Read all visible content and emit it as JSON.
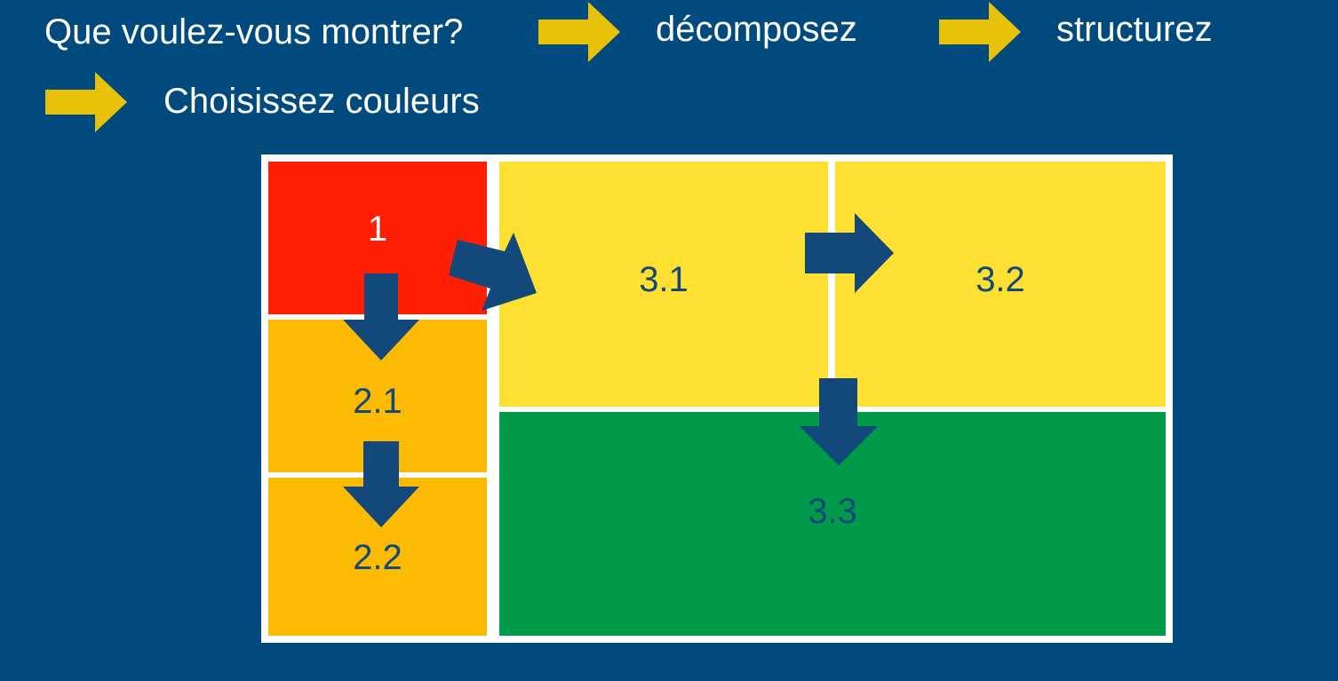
{
  "steps": [
    "Que voulez-vous montrer?",
    "décomposez",
    "structurez",
    "Choisissez couleurs"
  ],
  "colors": {
    "background": "#014a7d",
    "step_arrow": "#e7c208",
    "flow_arrow": "#13487a",
    "red": "#fe1e04",
    "orange": "#fdba03",
    "yellow": "#fee033",
    "green": "#019a4a"
  },
  "blocks": {
    "b1": "1",
    "b2_1": "2.1",
    "b2_2": "2.2",
    "b3_1": "3.1",
    "b3_2": "3.2",
    "b3_3": "3.3"
  },
  "icons": {
    "step_arrow": "arrow-right-icon",
    "flow_arrow": "arrow-icon"
  }
}
